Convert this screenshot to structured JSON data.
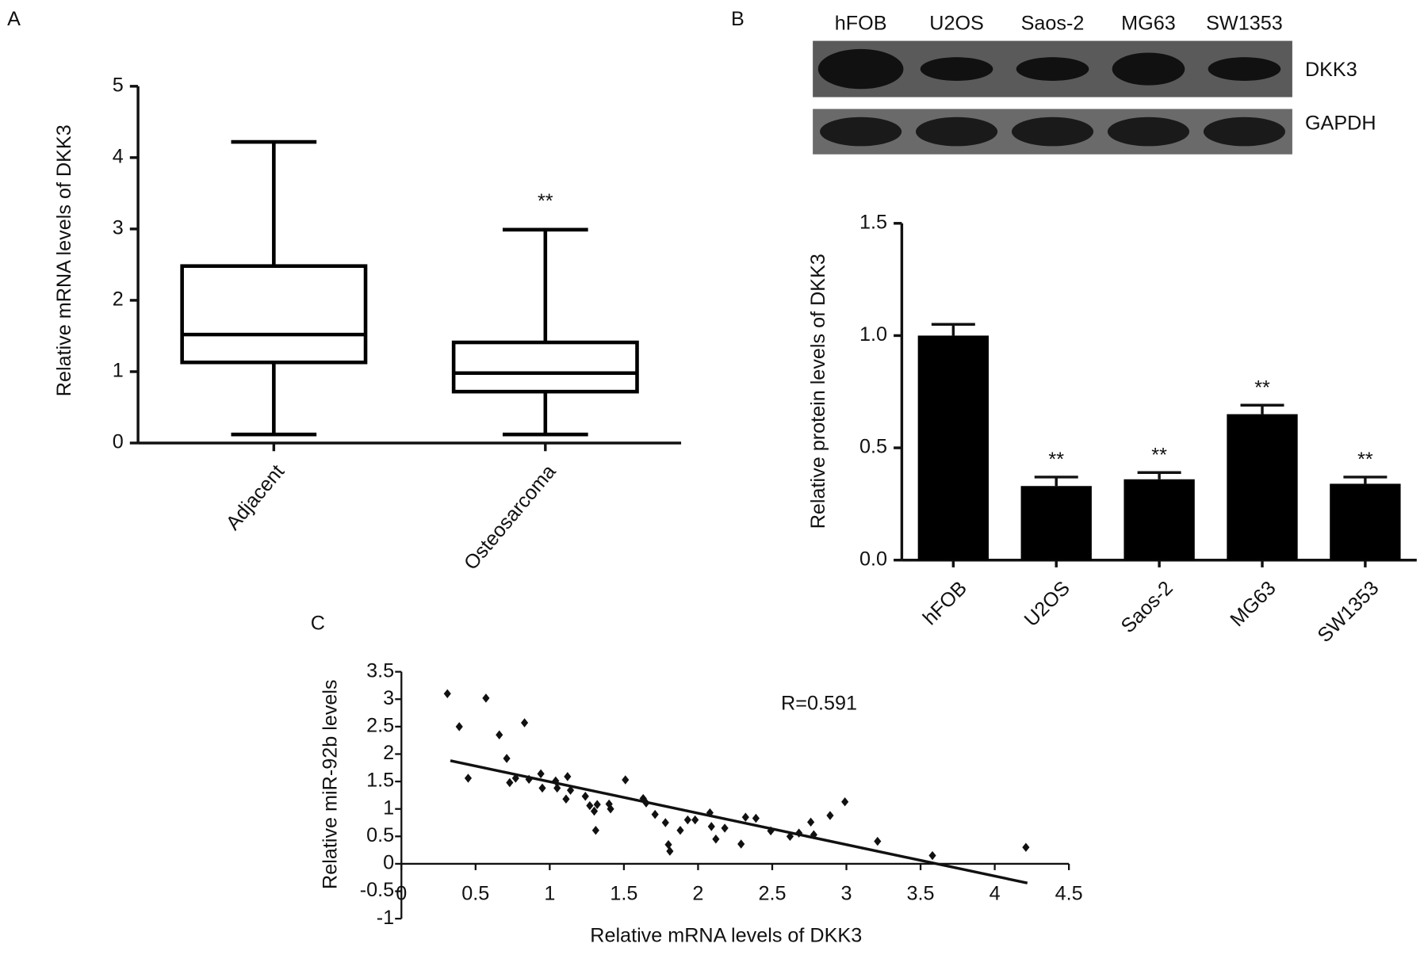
{
  "panel_labels": [
    "A",
    "B",
    "C"
  ],
  "blot": {
    "lanes": [
      "hFOB",
      "U2OS",
      "Saos-2",
      "MG63",
      "SW1353"
    ],
    "bands": [
      "DKK3",
      "GAPDH"
    ]
  },
  "chart_data": [
    {
      "type": "box",
      "y_label": "Relative mRNA levels of DKK3",
      "categories": [
        "Adjacent",
        "Osteosarcoma"
      ],
      "boxes": [
        {
          "min": 0.12,
          "q1": 1.13,
          "median": 1.52,
          "q3": 2.48,
          "max": 4.22
        },
        {
          "min": 0.12,
          "q1": 0.72,
          "median": 0.98,
          "q3": 1.41,
          "max": 2.99
        }
      ],
      "annotations": [
        null,
        "**"
      ],
      "color": "#000000",
      "ylim": [
        0,
        5
      ],
      "yticks": [
        0,
        1,
        2,
        3,
        4,
        5
      ],
      "grid": false
    },
    {
      "type": "bar",
      "y_label": "Relative protein levels of DKK3",
      "categories": [
        "hFOB",
        "U2OS",
        "Saos-2",
        "MG63",
        "SW1353"
      ],
      "values": [
        1.0,
        0.33,
        0.36,
        0.65,
        0.34
      ],
      "errors": [
        0.05,
        0.04,
        0.03,
        0.04,
        0.03
      ],
      "annotations": [
        null,
        "**",
        "**",
        "**",
        "**"
      ],
      "color": "#000000",
      "ylim": [
        0,
        1.5
      ],
      "yticks": [
        {
          "value": 0,
          "label": "0.0"
        },
        0.5,
        {
          "value": 1,
          "label": "1.0"
        },
        1.5
      ],
      "grid": false
    },
    {
      "type": "scatter",
      "x_label": "Relative mRNA levels of DKK3",
      "y_label": "Relative miR-92b levels",
      "annotation": "R=0.591",
      "x": [
        0.31,
        0.57,
        0.39,
        0.66,
        0.83,
        0.71,
        0.45,
        0.73,
        0.77,
        0.86,
        0.94,
        0.95,
        1.04,
        1.05,
        1.12,
        1.11,
        1.14,
        1.24,
        1.27,
        1.3,
        1.32,
        1.31,
        1.4,
        1.41,
        1.51,
        1.63,
        1.65,
        1.71,
        1.78,
        1.8,
        1.81,
        1.88,
        1.93,
        1.98,
        2.08,
        2.09,
        2.12,
        2.18,
        2.29,
        2.32,
        2.39,
        2.49,
        2.62,
        2.68,
        2.76,
        2.78,
        2.89,
        2.99,
        3.21,
        3.58,
        4.21
      ],
      "y": [
        3.1,
        3.02,
        2.5,
        2.35,
        2.57,
        1.92,
        1.56,
        1.48,
        1.56,
        1.54,
        1.64,
        1.38,
        1.51,
        1.38,
        1.59,
        1.18,
        1.34,
        1.23,
        1.06,
        0.96,
        1.08,
        0.61,
        1.09,
        1.0,
        1.53,
        1.19,
        1.11,
        0.9,
        0.75,
        0.35,
        0.23,
        0.61,
        0.8,
        0.8,
        0.93,
        0.68,
        0.45,
        0.65,
        0.36,
        0.85,
        0.83,
        0.6,
        0.5,
        0.56,
        0.76,
        0.53,
        0.88,
        1.13,
        0.41,
        0.15,
        0.3
      ],
      "fit_line": {
        "x": [
          0.33,
          4.22
        ],
        "y": [
          1.88,
          -0.35
        ]
      },
      "color": "#111111",
      "xlim": [
        0,
        4.5
      ],
      "xticks": [
        0,
        0.5,
        1,
        1.5,
        2,
        2.5,
        3,
        3.5,
        4,
        4.5
      ],
      "ylim": [
        -1,
        3.5
      ],
      "yticks": [
        -1,
        -0.5,
        0,
        0.5,
        1,
        1.5,
        2,
        2.5,
        3,
        3.5
      ],
      "grid": false
    }
  ]
}
